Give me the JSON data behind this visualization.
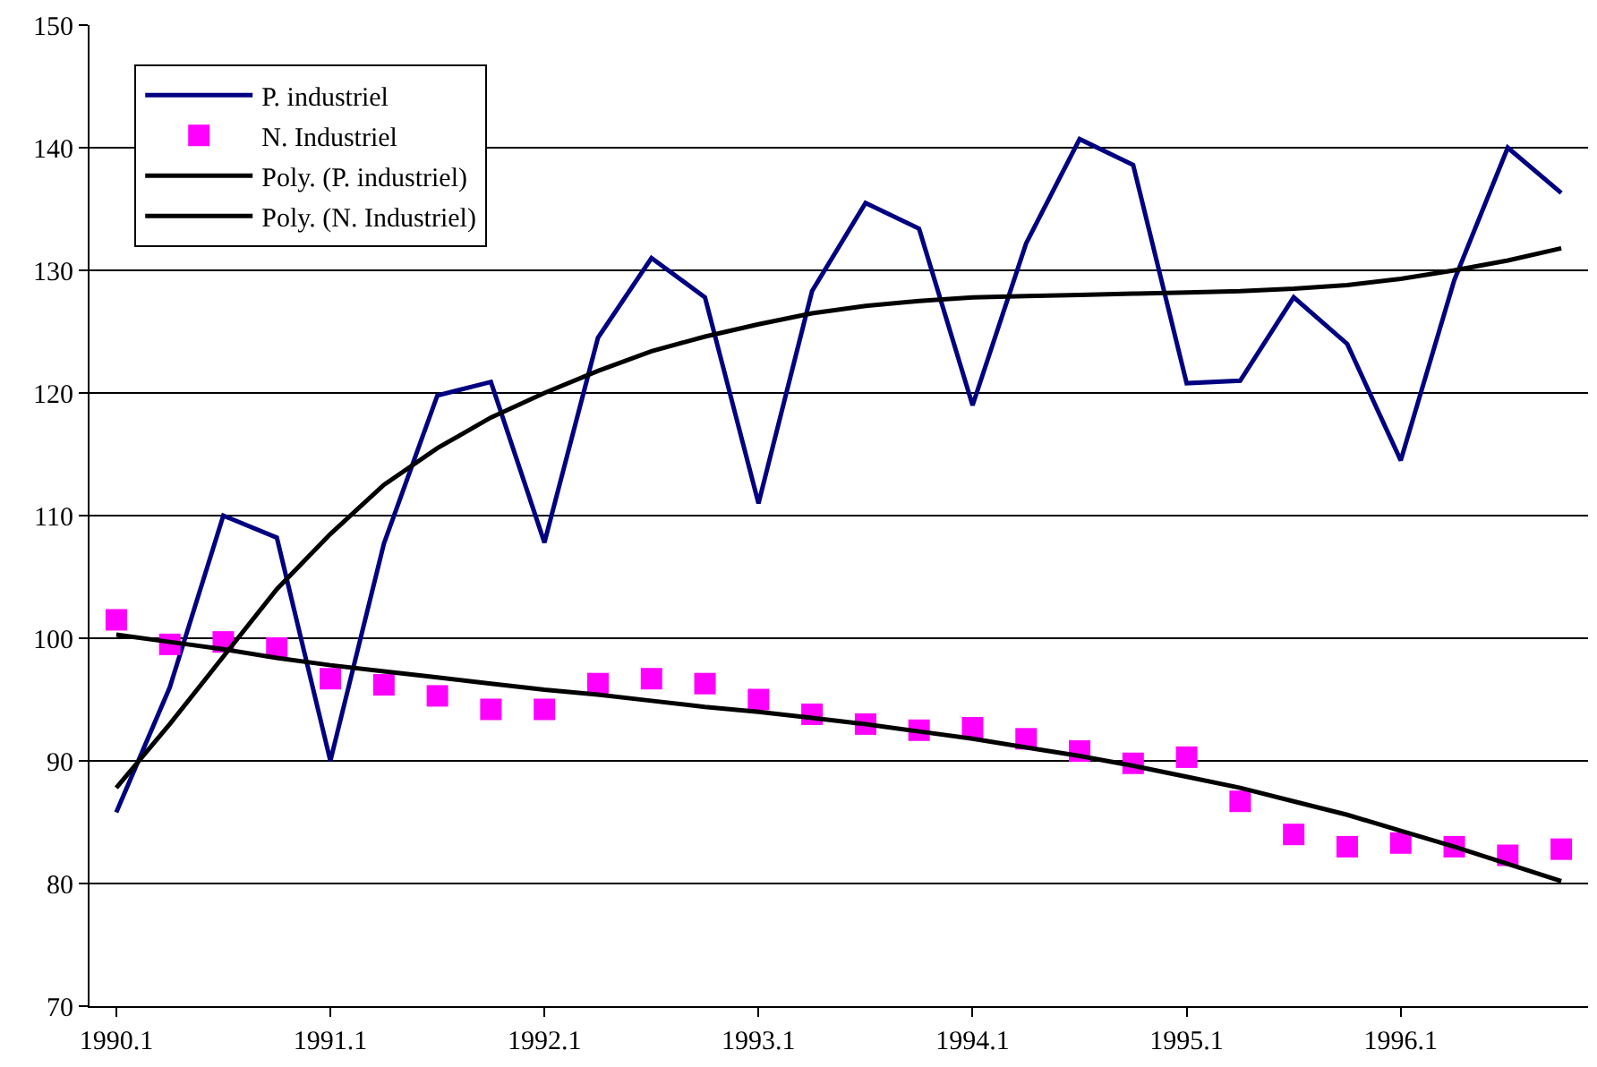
{
  "chart_data": {
    "type": "line",
    "categories": [
      "1990.1",
      null,
      null,
      null,
      "1991.1",
      null,
      null,
      null,
      "1992.1",
      null,
      null,
      null,
      "1993.1",
      null,
      null,
      null,
      "1994.1",
      null,
      null,
      null,
      "1995.1",
      null,
      null,
      null,
      "1996.1",
      null,
      null,
      null
    ],
    "series": [
      {
        "name": "P. industriel",
        "color": "#000080",
        "values": [
          85.8,
          96,
          110,
          108.2,
          90,
          107.7,
          119.8,
          120.9,
          107.8,
          124.5,
          131,
          127.8,
          111,
          128.3,
          135.5,
          133.4,
          119,
          132.2,
          140.7,
          138.6,
          120.8,
          121,
          127.8,
          124,
          114.5,
          129.2,
          140,
          136.3
        ]
      },
      {
        "name": "N. Industriel",
        "type": "scatter",
        "marker": "square",
        "color": "#ff00ff",
        "values": [
          101.5,
          99.5,
          99.7,
          99.2,
          96.7,
          96.2,
          95.3,
          94.2,
          94.2,
          96.3,
          96.7,
          96.3,
          95.0,
          93.8,
          93.0,
          92.5,
          92.7,
          91.8,
          90.8,
          89.8,
          90.3,
          86.7,
          84.0,
          83.0,
          83.3,
          83.0,
          82.3,
          82.8
        ]
      },
      {
        "name": "Poly. (P. industriel)",
        "color": "#000000",
        "values": [
          87.8,
          93,
          98.5,
          104,
          108.5,
          112.5,
          115.5,
          118,
          120,
          121.8,
          123.4,
          124.6,
          125.6,
          126.5,
          127.1,
          127.5,
          127.8,
          127.9,
          128,
          128.1,
          128.2,
          128.3,
          128.5,
          128.8,
          129.3,
          130,
          130.8,
          131.8
        ]
      },
      {
        "name": "Poly. (N. Industriel)",
        "color": "#000000",
        "values": [
          100.3,
          99.7,
          99.1,
          98.4,
          97.8,
          97.3,
          96.8,
          96.3,
          95.8,
          95.4,
          94.9,
          94.4,
          94.0,
          93.5,
          93.0,
          92.4,
          91.8,
          91.1,
          90.4,
          89.6,
          88.7,
          87.8,
          86.7,
          85.6,
          84.3,
          83.0,
          81.6,
          80.2
        ]
      }
    ],
    "ylim": [
      70,
      150
    ],
    "yticks": [
      70,
      80,
      90,
      100,
      110,
      120,
      130,
      140,
      150
    ],
    "grid": "y",
    "legend": "top left"
  }
}
